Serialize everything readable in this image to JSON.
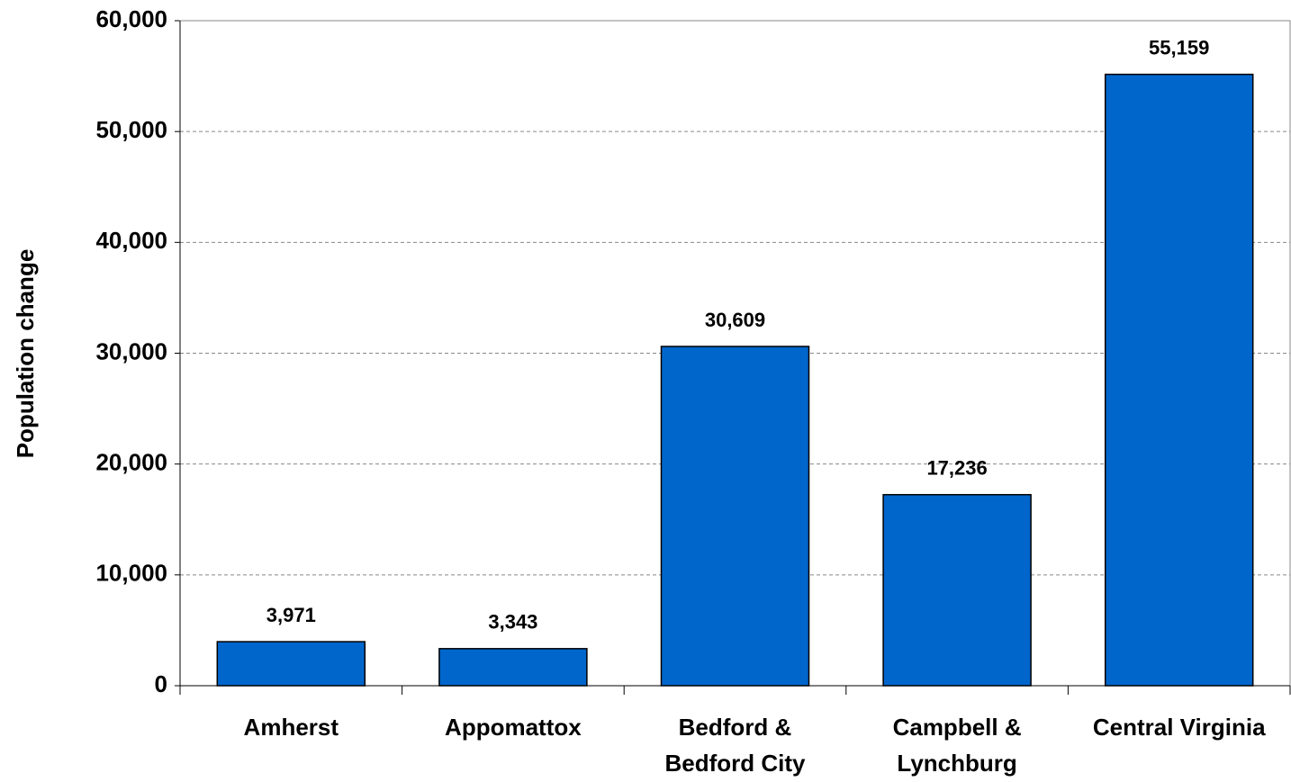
{
  "chart_data": {
    "type": "bar",
    "y_axis_label": "Population change",
    "categories": [
      "Amherst",
      "Appomattox",
      "Bedford &\nBedford City",
      "Campbell &\nLynchburg",
      "Central Virginia"
    ],
    "values": [
      3971,
      3343,
      30609,
      17236,
      55159
    ],
    "value_labels": [
      "3,971",
      "3,343",
      "30,609",
      "17,236",
      "55,159"
    ],
    "color": "#0066cc",
    "ylim": [
      0,
      60000
    ],
    "yticks": [
      0,
      {
        "value": 10000,
        "label": "10,000"
      },
      {
        "value": 20000,
        "label": "20,000"
      },
      {
        "value": 30000,
        "label": "30,000"
      },
      {
        "value": 40000,
        "label": "40,000"
      },
      {
        "value": 50000,
        "label": "50,000"
      },
      {
        "value": 60000,
        "label": "60,000"
      }
    ],
    "grid": true
  }
}
